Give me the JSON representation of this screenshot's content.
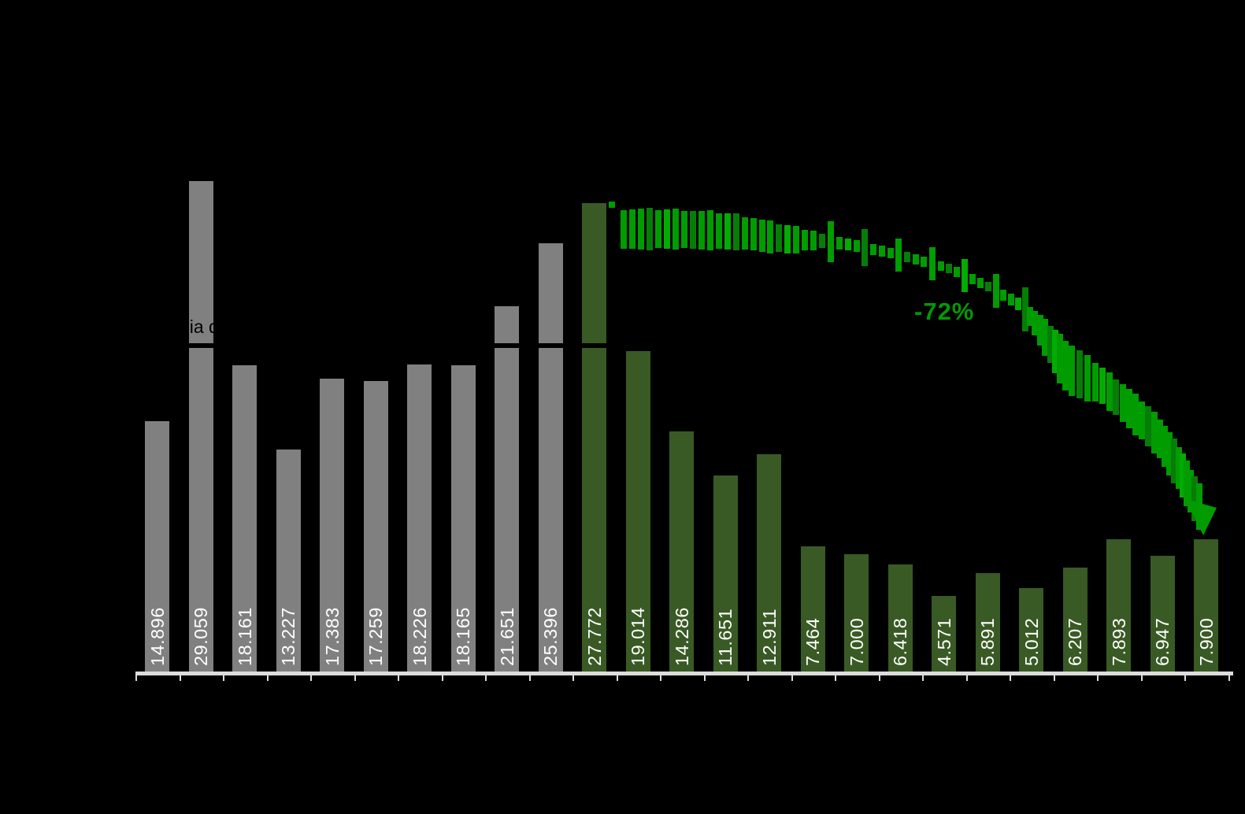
{
  "chart_data": {
    "type": "bar",
    "bars": [
      {
        "label": "14.896",
        "value": 14896,
        "group": "gray"
      },
      {
        "label": "29.059",
        "value": 29059,
        "group": "gray"
      },
      {
        "label": "18.161",
        "value": 18161,
        "group": "gray"
      },
      {
        "label": "13.227",
        "value": 13227,
        "group": "gray"
      },
      {
        "label": "17.383",
        "value": 17383,
        "group": "gray"
      },
      {
        "label": "17.259",
        "value": 17259,
        "group": "gray"
      },
      {
        "label": "18.226",
        "value": 18226,
        "group": "gray"
      },
      {
        "label": "18.165",
        "value": 18165,
        "group": "gray"
      },
      {
        "label": "21.651",
        "value": 21651,
        "group": "gray"
      },
      {
        "label": "25.396",
        "value": 25396,
        "group": "gray"
      },
      {
        "label": "27.772",
        "value": 27772,
        "group": "green"
      },
      {
        "label": "19.014",
        "value": 19014,
        "group": "green"
      },
      {
        "label": "14.286",
        "value": 14286,
        "group": "green"
      },
      {
        "label": "11.651",
        "value": 11651,
        "group": "green"
      },
      {
        "label": "12.911",
        "value": 12911,
        "group": "green"
      },
      {
        "label": "7.464",
        "value": 7464,
        "group": "green"
      },
      {
        "label": "7.000",
        "value": 7000,
        "group": "green"
      },
      {
        "label": "6.418",
        "value": 6418,
        "group": "green"
      },
      {
        "label": "4.571",
        "value": 4571,
        "group": "green"
      },
      {
        "label": "5.891",
        "value": 5891,
        "group": "green"
      },
      {
        "label": "5.012",
        "value": 5012,
        "group": "green"
      },
      {
        "label": "6.207",
        "value": 6207,
        "group": "green"
      },
      {
        "label": "7.893",
        "value": 7893,
        "group": "green"
      },
      {
        "label": "6.947",
        "value": 6947,
        "group": "green"
      },
      {
        "label": "7.900",
        "value": 7900,
        "group": "green"
      }
    ],
    "average_line": {
      "label": "Média de 19.342",
      "value": 19342,
      "color": "#000000"
    },
    "annotations": {
      "decline": {
        "text": "-72%",
        "color": "#009B00"
      }
    },
    "legend": [],
    "grid": false
  },
  "colors": {
    "background": "#000000",
    "gray_bar": "#808080",
    "green_bar": "#395A24",
    "trend_green": "#009C00",
    "trend_green_dark": "#067D06",
    "trend_green_light": "#02AC02",
    "axis": "#DCDCDC",
    "bar_value_text": "#FFFFFF"
  }
}
